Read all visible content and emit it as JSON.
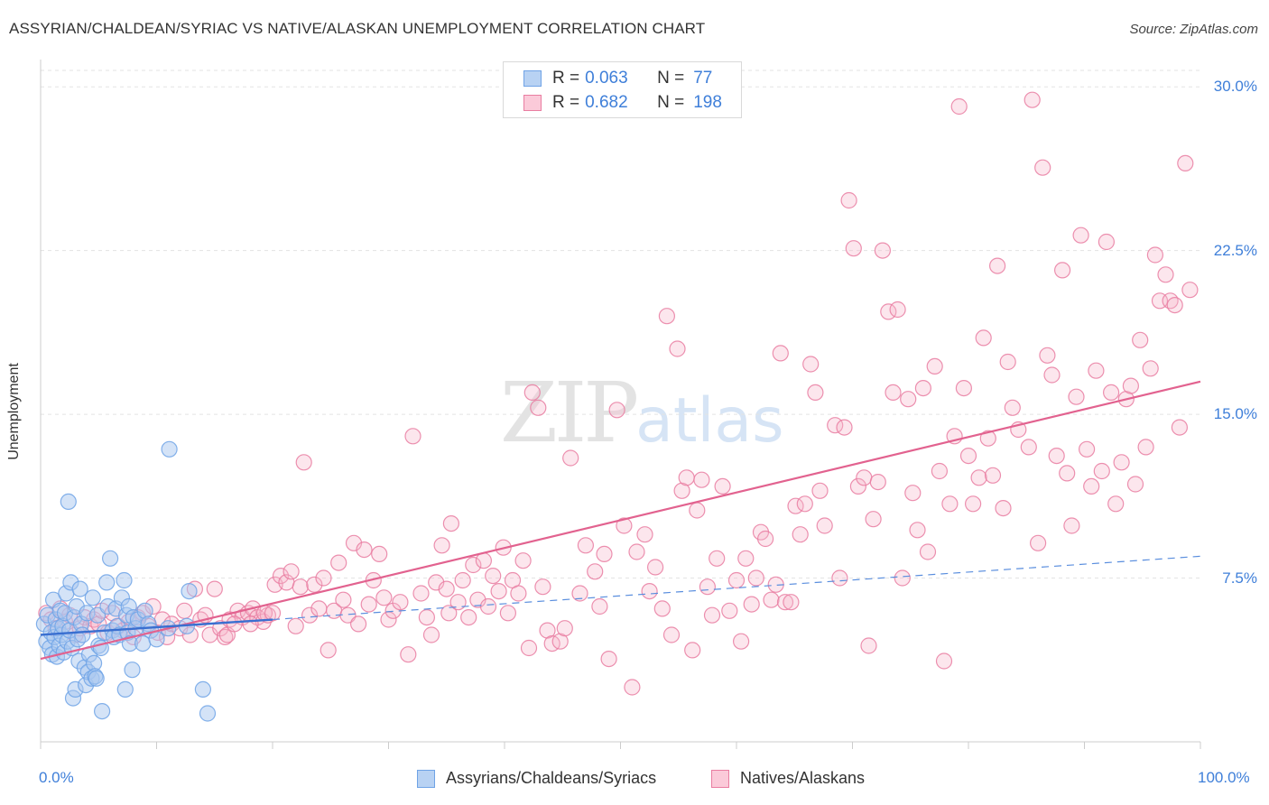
{
  "header": {
    "title": "ASSYRIAN/CHALDEAN/SYRIAC VS NATIVE/ALASKAN UNEMPLOYMENT CORRELATION CHART",
    "source": "Source: ZipAtlas.com"
  },
  "watermark": {
    "zip": "ZIP",
    "atlas": "atlas"
  },
  "legend": {
    "r_label": "R =",
    "n_label": "N =",
    "rows": [
      {
        "r": "0.063",
        "n": "77",
        "color": "#a9c8f0"
      },
      {
        "r": "0.682",
        "n": "198",
        "color": "#f7b8cb"
      }
    ]
  },
  "chart_data": {
    "type": "scatter",
    "title": "ASSYRIAN/CHALDEAN/SYRIAC VS NATIVE/ALASKAN UNEMPLOYMENT CORRELATION CHART",
    "ylabel": "Unemployment",
    "xlim": [
      0,
      100
    ],
    "ylim": [
      0,
      31
    ],
    "x_tick_labels": [
      "0.0%",
      "100.0%"
    ],
    "y_ticks": [
      7.5,
      15.0,
      22.5,
      30.0
    ],
    "y_tick_labels": [
      "7.5%",
      "15.0%",
      "22.5%",
      "30.0%"
    ],
    "grid": "horizontal dashed",
    "legend_position": "top-center",
    "series": [
      {
        "name": "Assyrians/Chaldeans/Syriacs",
        "color": "#6fa3e6",
        "fill": "#a9c8f0",
        "r": 0.063,
        "n": 77,
        "trend": {
          "solid": [
            [
              0,
              4.9
            ],
            [
              20,
              5.6
            ]
          ],
          "dashed": [
            [
              20,
              5.6
            ],
            [
              100,
              8.5
            ]
          ]
        },
        "points": [
          [
            0.3,
            5.4
          ],
          [
            0.5,
            4.6
          ],
          [
            0.6,
            5.8
          ],
          [
            0.8,
            4.3
          ],
          [
            0.9,
            5.0
          ],
          [
            1.0,
            4.0
          ],
          [
            1.1,
            6.5
          ],
          [
            1.2,
            4.8
          ],
          [
            1.3,
            5.6
          ],
          [
            1.4,
            3.9
          ],
          [
            1.5,
            5.2
          ],
          [
            1.6,
            4.4
          ],
          [
            1.7,
            6.0
          ],
          [
            1.8,
            4.9
          ],
          [
            1.9,
            5.3
          ],
          [
            2.0,
            4.1
          ],
          [
            2.1,
            5.9
          ],
          [
            2.2,
            6.8
          ],
          [
            2.3,
            4.6
          ],
          [
            2.4,
            11.0
          ],
          [
            2.5,
            5.1
          ],
          [
            2.6,
            7.3
          ],
          [
            2.7,
            4.3
          ],
          [
            2.8,
            2.0
          ],
          [
            2.9,
            5.7
          ],
          [
            3.0,
            2.4
          ],
          [
            3.1,
            6.2
          ],
          [
            3.2,
            4.7
          ],
          [
            3.3,
            3.7
          ],
          [
            3.4,
            7.0
          ],
          [
            3.5,
            5.4
          ],
          [
            3.6,
            4.9
          ],
          [
            3.8,
            3.4
          ],
          [
            3.9,
            2.6
          ],
          [
            4.0,
            5.9
          ],
          [
            4.1,
            3.2
          ],
          [
            4.2,
            4.0
          ],
          [
            4.4,
            2.9
          ],
          [
            4.5,
            6.6
          ],
          [
            4.6,
            3.6
          ],
          [
            4.7,
            3.0
          ],
          [
            4.8,
            2.9
          ],
          [
            4.9,
            5.8
          ],
          [
            5.0,
            4.4
          ],
          [
            5.2,
            4.3
          ],
          [
            5.3,
            1.4
          ],
          [
            5.5,
            5.0
          ],
          [
            5.7,
            7.3
          ],
          [
            5.8,
            6.2
          ],
          [
            6.0,
            8.4
          ],
          [
            6.2,
            5.1
          ],
          [
            6.3,
            4.8
          ],
          [
            6.5,
            6.1
          ],
          [
            6.6,
            5.3
          ],
          [
            6.8,
            4.9
          ],
          [
            7.0,
            6.6
          ],
          [
            7.2,
            7.4
          ],
          [
            7.3,
            2.4
          ],
          [
            7.4,
            5.8
          ],
          [
            7.5,
            5.0
          ],
          [
            7.6,
            6.2
          ],
          [
            7.7,
            4.5
          ],
          [
            7.9,
            3.3
          ],
          [
            8.0,
            5.7
          ],
          [
            8.2,
            5.2
          ],
          [
            8.4,
            5.6
          ],
          [
            8.8,
            4.5
          ],
          [
            9.0,
            6.0
          ],
          [
            9.3,
            5.4
          ],
          [
            9.5,
            5.1
          ],
          [
            10.0,
            4.7
          ],
          [
            11.0,
            5.2
          ],
          [
            11.1,
            13.4
          ],
          [
            12.6,
            5.3
          ],
          [
            12.8,
            6.9
          ],
          [
            14.0,
            2.4
          ],
          [
            14.4,
            1.3
          ]
        ]
      },
      {
        "name": "Natives/Alaskans",
        "color": "#e97da1",
        "fill": "#f7b8cb",
        "r": 0.682,
        "n": 198,
        "trend": {
          "solid": [
            [
              0,
              3.8
            ],
            [
              100,
              16.5
            ]
          ]
        },
        "points": [
          [
            0.5,
            5.9
          ],
          [
            0.9,
            5.6
          ],
          [
            1.3,
            5.2
          ],
          [
            1.7,
            6.1
          ],
          [
            2.1,
            5.5
          ],
          [
            2.5,
            5.8
          ],
          [
            3.0,
            4.9
          ],
          [
            3.4,
            5.2
          ],
          [
            3.8,
            5.7
          ],
          [
            4.3,
            5.3
          ],
          [
            4.6,
            5.6
          ],
          [
            5.0,
            5.4
          ],
          [
            5.3,
            6.0
          ],
          [
            5.8,
            5.0
          ],
          [
            6.2,
            5.9
          ],
          [
            6.7,
            5.3
          ],
          [
            7.1,
            5.1
          ],
          [
            7.6,
            5.5
          ],
          [
            8.0,
            4.8
          ],
          [
            8.4,
            5.7
          ],
          [
            8.8,
            5.9
          ],
          [
            9.3,
            5.3
          ],
          [
            9.7,
            6.2
          ],
          [
            10.1,
            5.0
          ],
          [
            10.5,
            5.6
          ],
          [
            10.9,
            4.8
          ],
          [
            11.3,
            5.4
          ],
          [
            12.0,
            5.2
          ],
          [
            12.4,
            6.0
          ],
          [
            12.9,
            4.9
          ],
          [
            13.3,
            7.0
          ],
          [
            13.8,
            5.6
          ],
          [
            14.2,
            5.8
          ],
          [
            14.6,
            4.9
          ],
          [
            15.0,
            7.0
          ],
          [
            15.5,
            5.2
          ],
          [
            15.9,
            4.8
          ],
          [
            16.3,
            5.6
          ],
          [
            17.0,
            6.0
          ],
          [
            17.4,
            5.7
          ],
          [
            17.9,
            5.9
          ],
          [
            18.3,
            6.1
          ],
          [
            18.7,
            5.7
          ],
          [
            19.2,
            5.5
          ],
          [
            19.6,
            5.8
          ],
          [
            16.1,
            4.9
          ],
          [
            16.7,
            5.4
          ],
          [
            18.1,
            5.4
          ],
          [
            19.3,
            5.9
          ],
          [
            20.0,
            5.9
          ],
          [
            20.2,
            7.2
          ],
          [
            20.7,
            7.6
          ],
          [
            21.2,
            7.3
          ],
          [
            21.6,
            7.8
          ],
          [
            22.0,
            5.3
          ],
          [
            22.4,
            7.1
          ],
          [
            22.7,
            12.8
          ],
          [
            23.2,
            5.8
          ],
          [
            23.6,
            7.2
          ],
          [
            24.0,
            6.1
          ],
          [
            24.4,
            7.5
          ],
          [
            24.8,
            4.2
          ],
          [
            25.3,
            6.0
          ],
          [
            25.7,
            8.2
          ],
          [
            26.1,
            6.5
          ],
          [
            26.5,
            5.8
          ],
          [
            27.0,
            9.1
          ],
          [
            27.4,
            5.4
          ],
          [
            27.9,
            8.8
          ],
          [
            28.3,
            6.3
          ],
          [
            28.7,
            7.4
          ],
          [
            29.2,
            8.6
          ],
          [
            29.6,
            6.6
          ],
          [
            30.0,
            5.6
          ],
          [
            30.4,
            6.0
          ],
          [
            31.7,
            4.0
          ],
          [
            32.1,
            14.0
          ],
          [
            31.0,
            6.4
          ],
          [
            32.8,
            6.8
          ],
          [
            33.3,
            5.7
          ],
          [
            33.7,
            4.9
          ],
          [
            34.1,
            7.3
          ],
          [
            34.6,
            9.0
          ],
          [
            35.0,
            7.0
          ],
          [
            35.2,
            5.9
          ],
          [
            35.4,
            10.0
          ],
          [
            36.0,
            6.4
          ],
          [
            36.4,
            7.4
          ],
          [
            36.9,
            5.7
          ],
          [
            37.3,
            8.1
          ],
          [
            37.7,
            6.5
          ],
          [
            38.2,
            8.3
          ],
          [
            38.6,
            6.2
          ],
          [
            39.0,
            7.6
          ],
          [
            39.5,
            6.9
          ],
          [
            39.9,
            8.9
          ],
          [
            40.3,
            5.9
          ],
          [
            40.7,
            7.4
          ],
          [
            41.2,
            6.8
          ],
          [
            41.6,
            8.3
          ],
          [
            42.1,
            4.3
          ],
          [
            42.4,
            16.0
          ],
          [
            42.9,
            15.3
          ],
          [
            43.3,
            7.1
          ],
          [
            43.7,
            5.1
          ],
          [
            44.1,
            4.5
          ],
          [
            44.8,
            4.6
          ],
          [
            45.2,
            5.2
          ],
          [
            45.7,
            13.0
          ],
          [
            46.5,
            6.8
          ],
          [
            47.0,
            9.0
          ],
          [
            47.8,
            7.8
          ],
          [
            48.2,
            6.2
          ],
          [
            48.6,
            8.6
          ],
          [
            49.0,
            3.8
          ],
          [
            49.7,
            15.2
          ],
          [
            50.3,
            9.9
          ],
          [
            51.0,
            2.5
          ],
          [
            51.4,
            8.7
          ],
          [
            52.1,
            9.5
          ],
          [
            52.5,
            6.9
          ],
          [
            53.0,
            8.0
          ],
          [
            53.6,
            6.1
          ],
          [
            54.0,
            19.5
          ],
          [
            54.4,
            4.9
          ],
          [
            54.9,
            18.0
          ],
          [
            55.3,
            11.5
          ],
          [
            55.7,
            12.1
          ],
          [
            56.2,
            4.2
          ],
          [
            56.6,
            10.6
          ],
          [
            57.0,
            12.0
          ],
          [
            57.5,
            7.1
          ],
          [
            57.9,
            5.8
          ],
          [
            58.3,
            8.4
          ],
          [
            58.8,
            11.7
          ],
          [
            59.4,
            6.0
          ],
          [
            60.0,
            7.4
          ],
          [
            60.4,
            4.6
          ],
          [
            60.8,
            8.4
          ],
          [
            61.3,
            6.3
          ],
          [
            61.7,
            7.5
          ],
          [
            62.1,
            9.6
          ],
          [
            62.5,
            9.3
          ],
          [
            63.0,
            6.5
          ],
          [
            63.4,
            7.2
          ],
          [
            63.8,
            17.8
          ],
          [
            64.2,
            6.4
          ],
          [
            64.7,
            6.4
          ],
          [
            65.1,
            10.8
          ],
          [
            65.5,
            9.5
          ],
          [
            65.9,
            10.9
          ],
          [
            66.4,
            17.3
          ],
          [
            66.8,
            16.0
          ],
          [
            67.2,
            11.5
          ],
          [
            67.6,
            9.9
          ],
          [
            68.5,
            14.5
          ],
          [
            68.9,
            7.5
          ],
          [
            69.3,
            14.4
          ],
          [
            69.7,
            24.8
          ],
          [
            70.1,
            22.6
          ],
          [
            70.5,
            11.7
          ],
          [
            71.0,
            12.1
          ],
          [
            71.4,
            4.4
          ],
          [
            71.8,
            10.2
          ],
          [
            72.2,
            11.9
          ],
          [
            72.6,
            22.5
          ],
          [
            73.1,
            19.7
          ],
          [
            73.5,
            16.0
          ],
          [
            73.9,
            19.8
          ],
          [
            74.3,
            7.5
          ],
          [
            74.8,
            15.7
          ],
          [
            75.2,
            11.4
          ],
          [
            75.6,
            9.7
          ],
          [
            76.1,
            16.2
          ],
          [
            76.5,
            8.7
          ],
          [
            77.1,
            17.2
          ],
          [
            77.5,
            12.4
          ],
          [
            77.9,
            3.7
          ],
          [
            78.4,
            10.9
          ],
          [
            78.8,
            14.0
          ],
          [
            79.2,
            29.1
          ],
          [
            79.6,
            16.2
          ],
          [
            80.0,
            13.1
          ],
          [
            80.4,
            10.9
          ],
          [
            80.9,
            12.1
          ],
          [
            81.3,
            18.5
          ],
          [
            81.7,
            13.9
          ],
          [
            82.1,
            12.2
          ],
          [
            82.5,
            21.8
          ],
          [
            83.0,
            10.7
          ],
          [
            83.4,
            17.4
          ],
          [
            83.8,
            15.3
          ],
          [
            84.3,
            14.3
          ],
          [
            85.2,
            13.5
          ],
          [
            85.5,
            29.4
          ],
          [
            86.0,
            9.1
          ],
          [
            86.4,
            26.3
          ],
          [
            86.8,
            17.7
          ],
          [
            87.2,
            16.8
          ],
          [
            87.6,
            13.1
          ],
          [
            88.1,
            21.6
          ],
          [
            88.5,
            12.3
          ],
          [
            88.9,
            9.9
          ],
          [
            89.3,
            15.8
          ],
          [
            89.7,
            23.2
          ],
          [
            90.2,
            13.4
          ],
          [
            90.6,
            11.7
          ],
          [
            91.0,
            17.0
          ],
          [
            91.5,
            12.4
          ],
          [
            91.9,
            22.9
          ],
          [
            92.3,
            16.0
          ],
          [
            92.7,
            10.9
          ],
          [
            93.2,
            12.8
          ],
          [
            93.6,
            15.7
          ],
          [
            94.0,
            16.3
          ],
          [
            94.4,
            11.8
          ],
          [
            94.8,
            18.4
          ],
          [
            95.3,
            13.5
          ],
          [
            95.7,
            17.1
          ],
          [
            96.1,
            22.3
          ],
          [
            96.5,
            20.2
          ],
          [
            97.0,
            21.4
          ],
          [
            97.4,
            20.2
          ],
          [
            97.8,
            20.0
          ],
          [
            98.2,
            14.4
          ],
          [
            98.7,
            26.5
          ],
          [
            99.1,
            20.7
          ]
        ]
      }
    ]
  },
  "bottom_legend": [
    {
      "label": "Assyrians/Chaldeans/Syriacs"
    },
    {
      "label": "Natives/Alaskans"
    }
  ]
}
